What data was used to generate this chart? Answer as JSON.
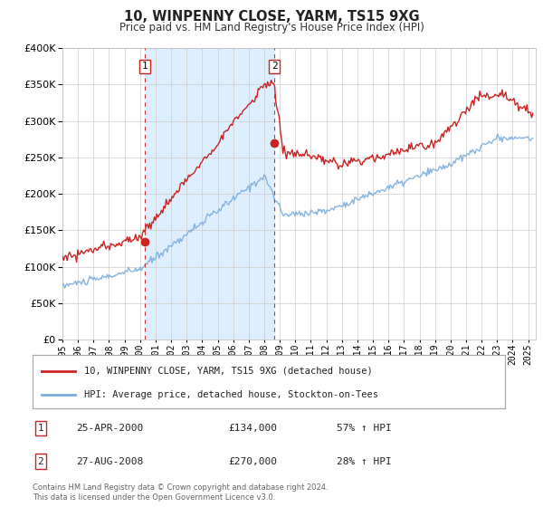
{
  "title": "10, WINPENNY CLOSE, YARM, TS15 9XG",
  "subtitle": "Price paid vs. HM Land Registry's House Price Index (HPI)",
  "legend_line1": "10, WINPENNY CLOSE, YARM, TS15 9XG (detached house)",
  "legend_line2": "HPI: Average price, detached house, Stockton-on-Tees",
  "sale1_date": "25-APR-2000",
  "sale1_price": "£134,000",
  "sale1_hpi": "57% ↑ HPI",
  "sale1_year": 2000.32,
  "sale1_value": 134000,
  "sale2_date": "27-AUG-2008",
  "sale2_price": "£270,000",
  "sale2_hpi": "28% ↑ HPI",
  "sale2_year": 2008.65,
  "sale2_value": 270000,
  "hpi_line_color": "#7aaddc",
  "price_line_color": "#cc2222",
  "shaded_region_color": "#ddeeff",
  "vline_color": "#cc3333",
  "footer": "Contains HM Land Registry data © Crown copyright and database right 2024.\nThis data is licensed under the Open Government Licence v3.0.",
  "ylim": [
    0,
    400000
  ],
  "xlim_start": 1995.0,
  "xlim_end": 2025.5,
  "background_color": "#ffffff",
  "grid_color": "#cccccc"
}
